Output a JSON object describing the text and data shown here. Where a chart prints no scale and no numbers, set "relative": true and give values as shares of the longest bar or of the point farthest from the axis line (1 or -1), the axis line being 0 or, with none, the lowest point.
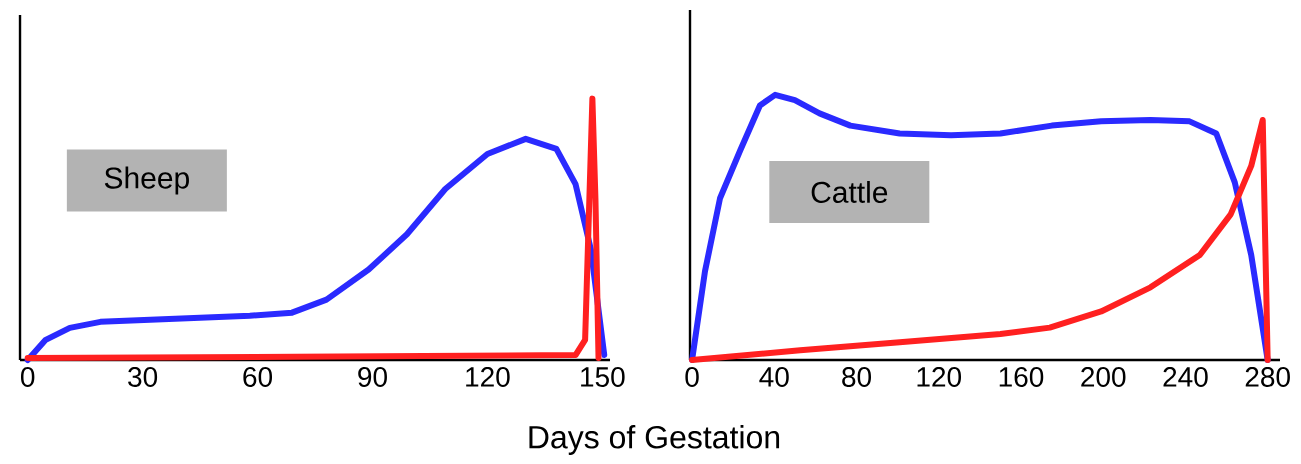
{
  "chart_data": [
    {
      "type": "line",
      "relative": true,
      "xlabel": "Days of Gestation",
      "xlim": [
        -2,
        152
      ],
      "xticks": [
        0,
        30,
        60,
        90,
        120,
        150
      ],
      "annotations": [
        "Sheep"
      ],
      "series": [
        {
          "color": "#2a2aff",
          "x": [
            0,
            4.7,
            11,
            19,
            32,
            45,
            58,
            69,
            78,
            89,
            99,
            109,
            120,
            130,
            138,
            143,
            147,
            150.5
          ],
          "values": [
            0,
            0.077,
            0.123,
            0.146,
            0.154,
            0.162,
            0.169,
            0.181,
            0.231,
            0.346,
            0.481,
            0.654,
            0.788,
            0.846,
            0.808,
            0.673,
            0.423,
            0.019
          ]
        },
        {
          "color": "#ff2020",
          "x": [
            0,
            70,
            143,
            145.5,
            147.4,
            148.2,
            149
          ],
          "values": [
            0.008,
            0.012,
            0.019,
            0.077,
            1,
            0.615,
            0.008
          ]
        }
      ]
    },
    {
      "type": "line",
      "relative": true,
      "xlim": [
        -1,
        286
      ],
      "xticks": [
        0,
        40,
        80,
        120,
        160,
        200,
        240,
        280
      ],
      "annotations": [
        "Cattle"
      ],
      "series": [
        {
          "color": "#2a2aff",
          "x": [
            0,
            6.3,
            13.6,
            23.4,
            33,
            40.4,
            50,
            62,
            77,
            101,
            126,
            150,
            175,
            199,
            223,
            242,
            255,
            264,
            272,
            280
          ],
          "values": [
            0,
            0.335,
            0.61,
            0.79,
            0.96,
            1,
            0.98,
            0.93,
            0.884,
            0.854,
            0.848,
            0.854,
            0.884,
            0.9,
            0.905,
            0.9,
            0.854,
            0.67,
            0.396,
            0
          ]
        },
        {
          "color": "#ff2020",
          "x": [
            0,
            52.6,
            101,
            150,
            174,
            199,
            223,
            247,
            262,
            272,
            277.6,
            280
          ],
          "values": [
            0,
            0.037,
            0.067,
            0.098,
            0.122,
            0.183,
            0.274,
            0.396,
            0.549,
            0.732,
            0.905,
            0
          ]
        }
      ]
    }
  ]
}
